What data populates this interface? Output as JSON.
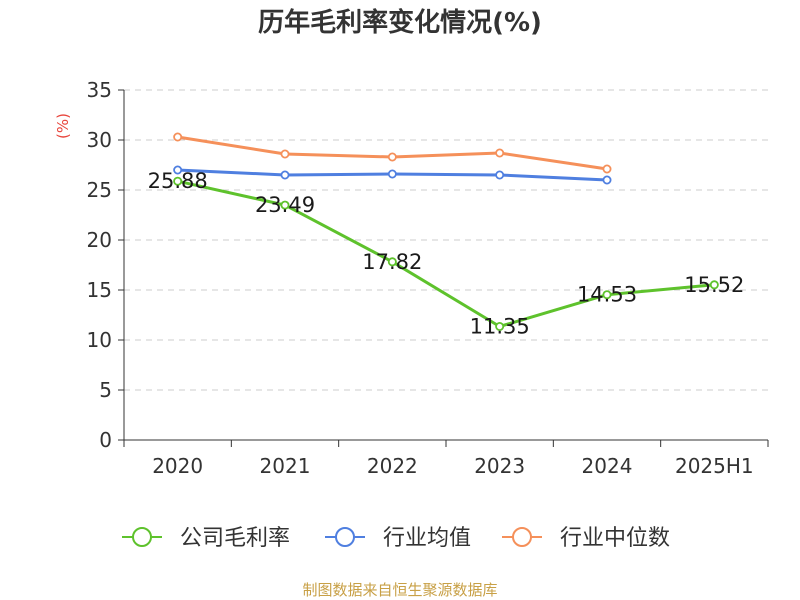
{
  "chart_data": {
    "type": "line",
    "title": "历年毛利率变化情况(%)",
    "ylabel": "(%)",
    "xlabel": "",
    "categories": [
      "2020",
      "2021",
      "2022",
      "2023",
      "2024",
      "2025H1"
    ],
    "y_ticks": [
      "0",
      "5",
      "10",
      "15",
      "20",
      "25",
      "30",
      "35"
    ],
    "ylim": [
      0,
      35
    ],
    "grid": true,
    "legend_position": "bottom",
    "series": [
      {
        "name": "公司毛利率",
        "color": "#5ec22c",
        "values": [
          25.88,
          23.49,
          17.82,
          11.35,
          14.53,
          15.52
        ],
        "labels": [
          "25.88",
          "23.49",
          "17.82",
          "11.35",
          "14.53",
          "15.52"
        ]
      },
      {
        "name": "行业均值",
        "color": "#4f7fe0",
        "values": [
          27.0,
          26.5,
          26.6,
          26.5,
          26.0,
          null
        ]
      },
      {
        "name": "行业中位数",
        "color": "#f5905a",
        "values": [
          30.3,
          28.6,
          28.3,
          28.7,
          27.1,
          null
        ]
      }
    ]
  },
  "source": "制图数据来自恒生聚源数据库"
}
